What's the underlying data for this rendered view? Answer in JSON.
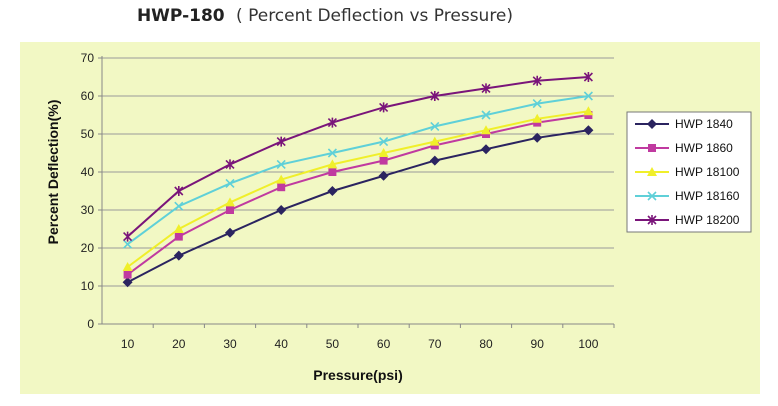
{
  "title": {
    "main": "HWP-180",
    "sub": "( Percent Deflection vs Pressure)"
  },
  "colors": {
    "plot_background": "#f2f8c4",
    "gridline": "#9a9a9a",
    "axis": "#888888"
  },
  "chart_data": {
    "type": "line",
    "title": "HWP-180 ( Percent Deflection vs Pressure)",
    "xlabel": "Pressure(psi)",
    "ylabel": "Percent Deflection(%)",
    "x": [
      10,
      20,
      30,
      40,
      50,
      60,
      70,
      80,
      90,
      100
    ],
    "ylim": [
      0,
      70
    ],
    "yticks": [
      0,
      10,
      20,
      30,
      40,
      50,
      60,
      70
    ],
    "grid": "horizontal",
    "legend_position": "right",
    "series": [
      {
        "name": "HWP 1840",
        "color": "#2b2460",
        "marker": "diamond",
        "values": [
          11,
          18,
          24,
          30,
          35,
          39,
          43,
          46,
          49,
          51
        ]
      },
      {
        "name": "HWP 1860",
        "color": "#c03aa0",
        "marker": "square",
        "values": [
          13,
          23,
          30,
          36,
          40,
          43,
          47,
          50,
          53,
          55
        ]
      },
      {
        "name": "HWP 18100",
        "color": "#f0ef2a",
        "marker": "triangle",
        "values": [
          15,
          25,
          32,
          38,
          42,
          45,
          48,
          51,
          54,
          56
        ]
      },
      {
        "name": "HWP 18160",
        "color": "#5fd0d8",
        "marker": "x",
        "values": [
          21,
          31,
          37,
          42,
          45,
          48,
          52,
          55,
          58,
          60
        ]
      },
      {
        "name": "HWP 18200",
        "color": "#7a157a",
        "marker": "star",
        "values": [
          23,
          35,
          42,
          48,
          53,
          57,
          60,
          62,
          64,
          65
        ]
      }
    ]
  }
}
